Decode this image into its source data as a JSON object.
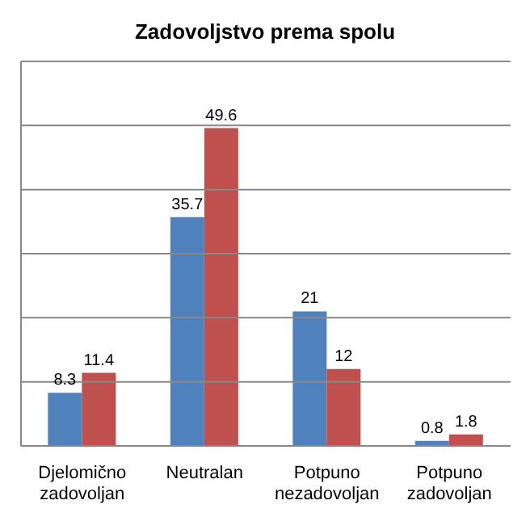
{
  "chart_data": {
    "type": "bar",
    "title": "Zadovoljstvo prema spolu",
    "categories": [
      "Djelomično zadovoljan",
      "Neutralan",
      "Potpuno nezadovoljan",
      "Potpuno zadovoljan"
    ],
    "series": [
      {
        "color": "#4f81bd",
        "values": [
          8.3,
          35.7,
          21,
          0.8
        ]
      },
      {
        "color": "#c0504d",
        "values": [
          11.4,
          49.6,
          12,
          1.8
        ]
      }
    ],
    "ylim": [
      0,
      60
    ],
    "yticks": [
      {
        "value": 0,
        "label": null
      },
      {
        "value": 10,
        "label": null
      },
      {
        "value": 20,
        "label": null
      },
      {
        "value": 30,
        "label": null
      },
      {
        "value": 40,
        "label": null
      },
      {
        "value": 50,
        "label": null
      },
      {
        "value": 60,
        "label": null
      }
    ],
    "grid": "y",
    "tick_labels": "x",
    "data_labels": true
  }
}
